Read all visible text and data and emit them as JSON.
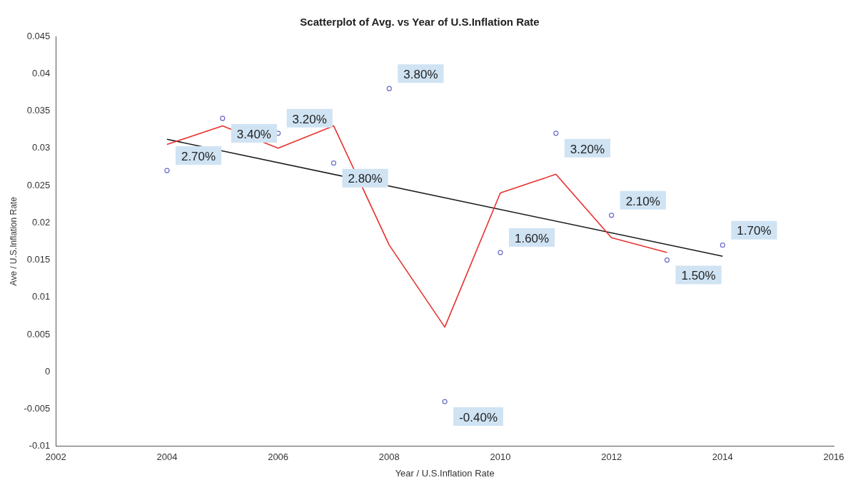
{
  "chart_data": {
    "type": "scatter",
    "title": "Scatterplot of Avg. vs Year of U.S.Inflation Rate",
    "xlabel": "Year / U.S.Inflation Rate",
    "ylabel": "Ave / U.S.Inflation Rate",
    "xlim": [
      2002,
      2016
    ],
    "xticks": [
      2002,
      2004,
      2006,
      2008,
      2010,
      2012,
      2014,
      2016
    ],
    "ylim": [
      -0.01,
      0.045
    ],
    "yticks": [
      -0.01,
      -0.005,
      0,
      0.005,
      0.01,
      0.015,
      0.02,
      0.025,
      0.03,
      0.035,
      0.04,
      0.045
    ],
    "grid": false,
    "legend": false,
    "series": [
      {
        "marker": "circle",
        "color": "#6a6ac8",
        "x": [
          2004,
          2005,
          2006,
          2007,
          2008,
          2009,
          2010,
          2011,
          2012,
          2013,
          2014
        ],
        "values": [
          0.027,
          0.034,
          0.032,
          0.028,
          0.038,
          -0.004,
          0.016,
          0.032,
          0.021,
          0.015,
          0.017
        ],
        "value_labels": [
          "2.70%",
          "3.40%",
          "3.20%",
          "2.80%",
          "3.80%",
          "-0.40%",
          "1.60%",
          "3.20%",
          "2.10%",
          "1.50%",
          "1.70%"
        ]
      },
      {
        "type": "line",
        "marker": "none",
        "color": "#e8312f",
        "x": [
          2004,
          2005,
          2006,
          2007,
          2008,
          2009,
          2010,
          2011,
          2012,
          2013
        ],
        "values": [
          0.0305,
          0.033,
          0.03,
          0.033,
          0.017,
          0.006,
          0.024,
          0.0265,
          0.018,
          0.016
        ]
      },
      {
        "type": "line",
        "marker": "none",
        "color": "#1a1a1a",
        "x": [
          2004,
          2014
        ],
        "values": [
          0.0312,
          0.0155
        ]
      }
    ]
  }
}
